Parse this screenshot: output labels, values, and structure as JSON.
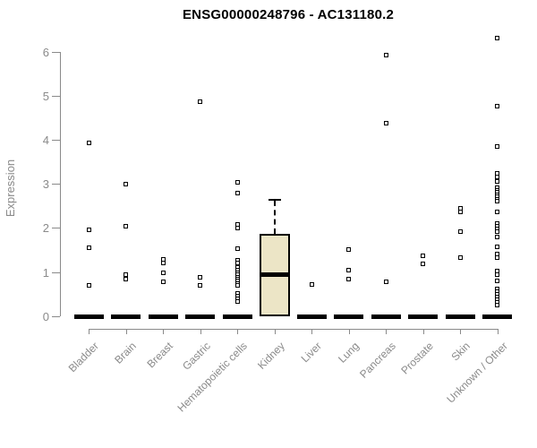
{
  "title": "ENSG00000248796 - AC131180.2",
  "chart_data": {
    "type": "boxplot",
    "title": "ENSG00000248796 - AC131180.2",
    "xlabel": "",
    "ylabel": "Expression",
    "ylim": [
      0,
      6.4
    ],
    "yticks": [
      0,
      1,
      2,
      3,
      4,
      5,
      6
    ],
    "grid": false,
    "legend": "none",
    "categories": [
      "Bladder",
      "Brain",
      "Breast",
      "Gastric",
      "Hematopoietic cells",
      "Kidney",
      "Liver",
      "Lung",
      "Pancreas",
      "Prostate",
      "Skin",
      "Unknown / Other"
    ],
    "series": [
      {
        "category": "Bladder",
        "median_bar_at_zero": true,
        "points": [
          3.95,
          1.97,
          1.57,
          0.7
        ]
      },
      {
        "category": "Brain",
        "median_bar_at_zero": true,
        "points": [
          3.0,
          2.04,
          0.95,
          0.85
        ]
      },
      {
        "category": "Breast",
        "median_bar_at_zero": true,
        "points": [
          1.29,
          1.21,
          1.0,
          0.78
        ]
      },
      {
        "category": "Gastric",
        "median_bar_at_zero": true,
        "points": [
          4.87,
          0.9,
          0.7
        ]
      },
      {
        "category": "Hematopoietic cells",
        "median_bar_at_zero": true,
        "points": [
          3.05,
          2.8,
          2.1,
          2.0,
          1.55,
          1.28,
          1.22,
          1.12,
          1.06,
          1.0,
          0.95,
          0.9,
          0.85,
          0.8,
          0.75,
          0.7,
          0.52,
          0.46,
          0.4,
          0.34
        ]
      },
      {
        "category": "Kidney",
        "median_bar_at_zero": false,
        "points": [],
        "box": {
          "q1": 0,
          "median": 0.95,
          "q3": 1.88,
          "whisker_high": 2.66,
          "whisker_low": 0
        }
      },
      {
        "category": "Liver",
        "median_bar_at_zero": true,
        "points": [
          0.73
        ]
      },
      {
        "category": "Lung",
        "median_bar_at_zero": true,
        "points": [
          1.53,
          1.06,
          0.85
        ]
      },
      {
        "category": "Pancreas",
        "median_bar_at_zero": true,
        "points": [
          5.93,
          4.39,
          0.78
        ]
      },
      {
        "category": "Prostate",
        "median_bar_at_zero": true,
        "points": [
          1.37,
          1.2
        ]
      },
      {
        "category": "Skin",
        "median_bar_at_zero": true,
        "points": [
          2.46,
          2.38,
          1.93,
          1.34
        ]
      },
      {
        "category": "Unknown / Other",
        "median_bar_at_zero": true,
        "points": [
          6.33,
          4.78,
          3.86,
          3.25,
          3.17,
          3.07,
          2.92,
          2.87,
          2.82,
          2.77,
          2.72,
          2.67,
          2.62,
          2.37,
          2.12,
          2.05,
          1.98,
          1.92,
          1.8,
          1.59,
          1.42,
          1.33,
          1.03,
          0.95,
          0.81,
          0.63,
          0.57,
          0.51,
          0.45,
          0.39,
          0.33,
          0.27
        ]
      }
    ],
    "colors": {
      "box_fill": "#ece5c6",
      "box_border": "#000000",
      "marker_border": "#000000",
      "marker_fill": "#ffffff",
      "zero_bar": "#000000",
      "axis": "#8a8a8a",
      "axis_text": "#8a8a8a",
      "title_text": "#000000",
      "background": "#ffffff"
    }
  }
}
